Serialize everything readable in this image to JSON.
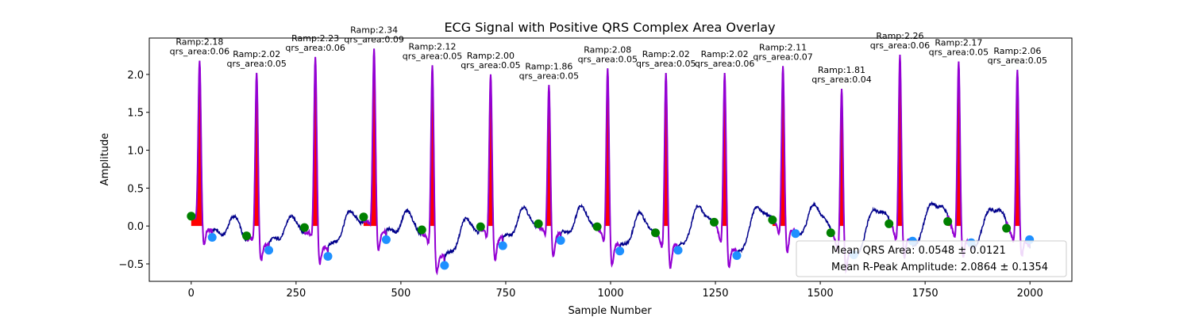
{
  "chart_data": {
    "type": "line",
    "title": "ECG Signal with Positive QRS Complex Area Overlay",
    "xlabel": "Sample Number",
    "ylabel": "Amplitude",
    "xlim": [
      -100,
      2100
    ],
    "ylim": [
      -0.73,
      2.48
    ],
    "xticks": [
      0,
      250,
      500,
      750,
      1000,
      1250,
      1500,
      1750,
      2000
    ],
    "yticks": [
      -0.5,
      0.0,
      0.5,
      1.0,
      1.5,
      2.0
    ],
    "ytick_labels": [
      "−0.5",
      "0.0",
      "0.5",
      "1.0",
      "1.5",
      "2.0"
    ],
    "grid": false,
    "colors": {
      "signal": "#00008b",
      "qrs_segment": "#9400d3",
      "qrs_fill": "#ff0000",
      "onset_marker": "#008000",
      "offset_marker": "#1e90ff"
    },
    "beats": [
      {
        "r_x": 20,
        "r_amp": 2.18,
        "onset": [
          0,
          0.13
        ],
        "offset": [
          50,
          -0.15
        ],
        "annotation_line1": "Ramp:2.18",
        "annotation_line2": "qrs_area:0.06"
      },
      {
        "r_x": 156,
        "r_amp": 2.02,
        "onset": [
          132,
          -0.13
        ],
        "offset": [
          185,
          -0.32
        ],
        "annotation_line1": "Ramp:2.02",
        "annotation_line2": "qrs_area:0.05"
      },
      {
        "r_x": 296,
        "r_amp": 2.23,
        "onset": [
          270,
          -0.02
        ],
        "offset": [
          326,
          -0.4
        ],
        "annotation_line1": "Ramp:2.23",
        "annotation_line2": "qrs_area:0.06"
      },
      {
        "r_x": 436,
        "r_amp": 2.34,
        "onset": [
          411,
          0.12
        ],
        "offset": [
          465,
          -0.18
        ],
        "annotation_line1": "Ramp:2.34",
        "annotation_line2": "qrs_area:0.09"
      },
      {
        "r_x": 575,
        "r_amp": 2.12,
        "onset": [
          550,
          -0.05
        ],
        "offset": [
          604,
          -0.52
        ],
        "annotation_line1": "Ramp:2.12",
        "annotation_line2": "qrs_area:0.05"
      },
      {
        "r_x": 714,
        "r_amp": 2.0,
        "onset": [
          690,
          -0.01
        ],
        "offset": [
          743,
          -0.26
        ],
        "annotation_line1": "Ramp:2.00",
        "annotation_line2": "qrs_area:0.05"
      },
      {
        "r_x": 853,
        "r_amp": 1.86,
        "onset": [
          828,
          0.03
        ],
        "offset": [
          881,
          -0.19
        ],
        "annotation_line1": "Ramp:1.86",
        "annotation_line2": "qrs_area:0.05"
      },
      {
        "r_x": 993,
        "r_amp": 2.08,
        "onset": [
          968,
          -0.01
        ],
        "offset": [
          1022,
          -0.33
        ],
        "annotation_line1": "Ramp:2.08",
        "annotation_line2": "qrs_area:0.05"
      },
      {
        "r_x": 1132,
        "r_amp": 2.02,
        "onset": [
          1107,
          -0.09
        ],
        "offset": [
          1161,
          -0.32
        ],
        "annotation_line1": "Ramp:2.02",
        "annotation_line2": "qrs_area:0.05"
      },
      {
        "r_x": 1272,
        "r_amp": 2.02,
        "onset": [
          1247,
          0.05
        ],
        "offset": [
          1301,
          -0.39
        ],
        "annotation_line1": "Ramp:2.02",
        "annotation_line2": "qrs_area:0.06"
      },
      {
        "r_x": 1411,
        "r_amp": 2.11,
        "onset": [
          1386,
          0.08
        ],
        "offset": [
          1441,
          -0.1
        ],
        "annotation_line1": "Ramp:2.11",
        "annotation_line2": "qrs_area:0.07"
      },
      {
        "r_x": 1551,
        "r_amp": 1.81,
        "onset": [
          1525,
          -0.09
        ],
        "offset": [
          1580,
          -0.38
        ],
        "annotation_line1": "Ramp:1.81",
        "annotation_line2": "qrs_area:0.04"
      },
      {
        "r_x": 1690,
        "r_amp": 2.26,
        "onset": [
          1664,
          0.03
        ],
        "offset": [
          1720,
          -0.2
        ],
        "annotation_line1": "Ramp:2.26",
        "annotation_line2": "qrs_area:0.06"
      },
      {
        "r_x": 1830,
        "r_amp": 2.17,
        "onset": [
          1804,
          0.06
        ],
        "offset": [
          1860,
          -0.22
        ],
        "annotation_line1": "Ramp:2.17",
        "annotation_line2": "qrs_area:0.05"
      },
      {
        "r_x": 1970,
        "r_amp": 2.06,
        "onset": [
          1944,
          -0.03
        ],
        "offset": [
          1999,
          -0.18
        ],
        "annotation_line1": "Ramp:2.06",
        "annotation_line2": "qrs_area:0.05"
      }
    ],
    "legend": {
      "placement": "lower-right",
      "entries": [
        "Mean QRS Area: 0.0548 ± 0.0121",
        "Mean R-Peak Amplitude: 2.0864 ± 0.1354"
      ]
    }
  }
}
